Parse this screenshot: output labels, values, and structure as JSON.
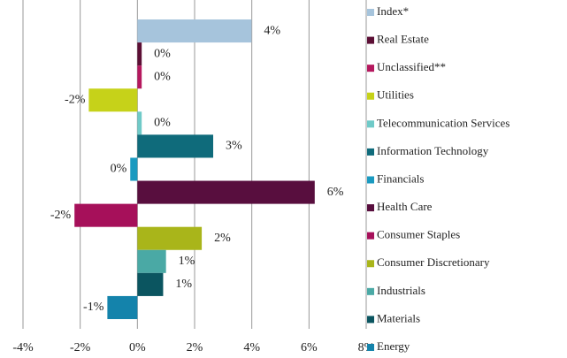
{
  "chart_data": {
    "type": "bar",
    "orientation": "horizontal",
    "categories": [
      "Index*",
      "Real Estate",
      "Unclassified**",
      "Utilities",
      "Telecommunication Services",
      "Information Technology",
      "Financials",
      "Health Care",
      "Consumer Staples",
      "Consumer Discretionary",
      "Industrials",
      "Materials",
      "Energy"
    ],
    "values": [
      3.99,
      0.15,
      0.15,
      -1.7,
      0.15,
      2.65,
      -0.25,
      6.2,
      -2.2,
      2.25,
      1.0,
      0.9,
      -1.05
    ],
    "value_labels": [
      "4%",
      "0%",
      "0%",
      "-2%",
      "0%",
      "3%",
      "0%",
      "6%",
      "-2%",
      "2%",
      "1%",
      "1%",
      "-1%"
    ],
    "colors": [
      "#a6c4dc",
      "#5c0f35",
      "#b5185e",
      "#c6d219",
      "#6fcac8",
      "#0f6b7b",
      "#1a9ac0",
      "#580e3e",
      "#a6105a",
      "#a9b51a",
      "#4aa9a5",
      "#0b5560",
      "#1483ab"
    ],
    "xlim": [
      -4,
      8
    ],
    "xticks": [
      {
        "value": -4,
        "label": "-4%"
      },
      {
        "value": -2,
        "label": "-2%"
      },
      {
        "value": 0,
        "label": "0%"
      },
      {
        "value": 2,
        "label": "2%"
      },
      {
        "value": 4,
        "label": "4%"
      },
      {
        "value": 6,
        "label": "6%"
      },
      {
        "value": 8,
        "label": "8%"
      }
    ],
    "grid": true,
    "legend": "right"
  }
}
